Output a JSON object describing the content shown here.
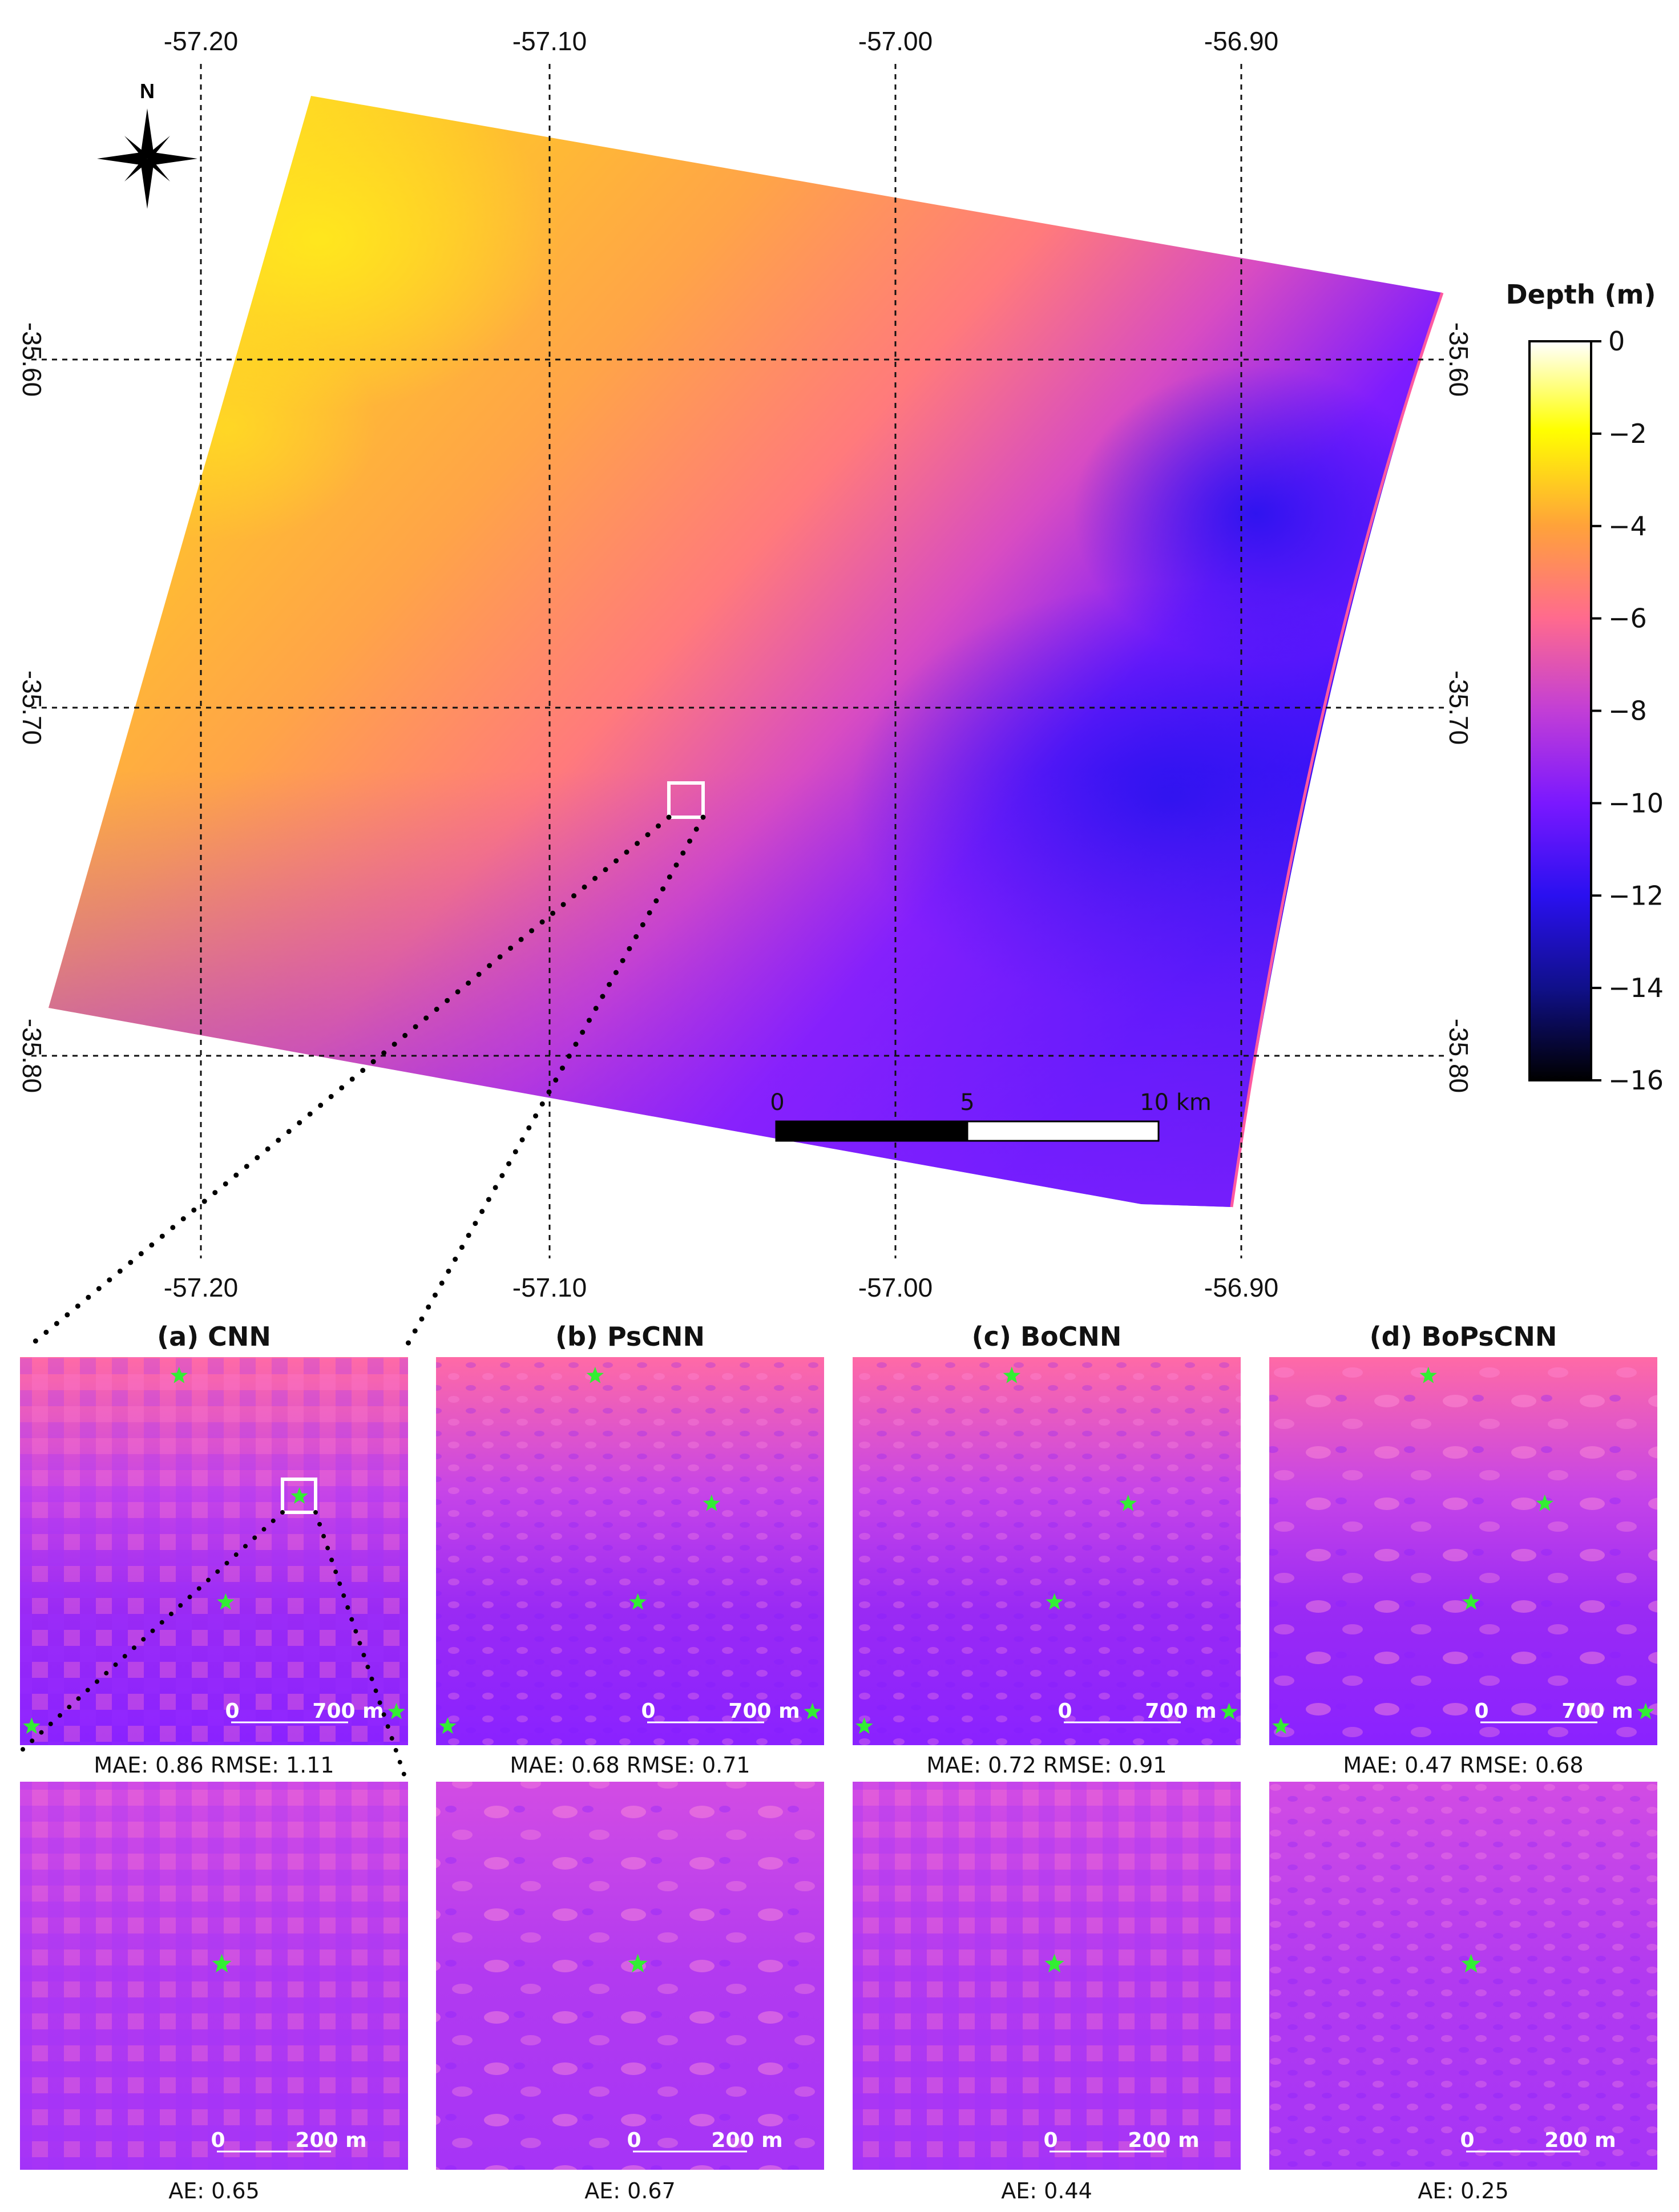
{
  "colors": {
    "depth_0": "#ffffff",
    "depth_2": "#ffff00",
    "depth_4": "#ffa23a",
    "depth_6": "#ff6a8e",
    "depth_8": "#c23ed6",
    "depth_10": "#7a18ff",
    "depth_12": "#2a10f0",
    "depth_14": "#10108a",
    "depth_16": "#000000",
    "marker": "#33ee33",
    "highlight_box": "#ffffff"
  },
  "map": {
    "longitude_ticks": [
      "-57.20",
      "-57.10",
      "-57.00",
      "-56.90"
    ],
    "latitude_ticks": [
      "-35.60",
      "-35.70",
      "-35.80"
    ],
    "north_label": "N",
    "scalebar": {
      "labels": [
        "0",
        "5",
        "10 km"
      ]
    },
    "colorbar": {
      "title": "Depth (m)",
      "tick_labels": [
        "0",
        "−2",
        "−4",
        "−6",
        "−8",
        "−10",
        "−12",
        "−14",
        "−16"
      ]
    }
  },
  "panels": [
    {
      "title": "(a) CNN",
      "metrics": "MAE: 0.86   RMSE: 1.11",
      "ae": "AE: 0.65",
      "scale_top": [
        "0",
        "700 m"
      ],
      "scale_bottom": [
        "0",
        "200 m"
      ]
    },
    {
      "title": "(b) PsCNN",
      "metrics": "MAE: 0.68   RMSE: 0.71",
      "ae": "AE: 0.67",
      "scale_top": [
        "0",
        "700 m"
      ],
      "scale_bottom": [
        "0",
        "200 m"
      ]
    },
    {
      "title": "(c) BoCNN",
      "metrics": "MAE: 0.72   RMSE: 0.91",
      "ae": "AE: 0.44",
      "scale_top": [
        "0",
        "700 m"
      ],
      "scale_bottom": [
        "0",
        "200 m"
      ]
    },
    {
      "title": "(d) BoPsCNN",
      "metrics": "MAE: 0.47   RMSE: 0.68",
      "ae": "AE: 0.25",
      "scale_top": [
        "0",
        "700 m"
      ],
      "scale_bottom": [
        "0",
        "200 m"
      ]
    }
  ]
}
